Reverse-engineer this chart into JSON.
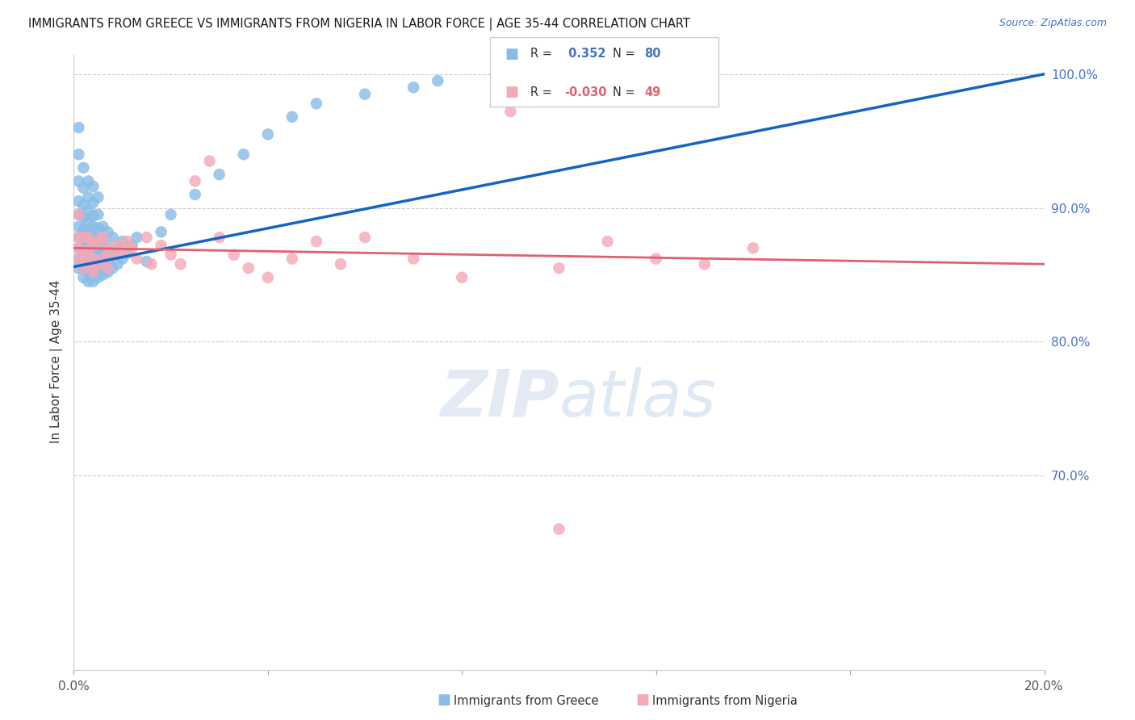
{
  "title": "IMMIGRANTS FROM GREECE VS IMMIGRANTS FROM NIGERIA IN LABOR FORCE | AGE 35-44 CORRELATION CHART",
  "source": "Source: ZipAtlas.com",
  "ylabel": "In Labor Force | Age 35-44",
  "x_min": 0.0,
  "x_max": 0.2,
  "y_min": 0.555,
  "y_max": 1.015,
  "y_ticks_right": [
    0.7,
    0.8,
    0.9,
    1.0
  ],
  "y_tick_labels_right": [
    "70.0%",
    "80.0%",
    "90.0%",
    "100.0%"
  ],
  "greece_R": 0.352,
  "greece_N": 80,
  "nigeria_R": -0.03,
  "nigeria_N": 49,
  "greece_color": "#87bce8",
  "nigeria_color": "#f5a8b5",
  "greece_line_color": "#1565c0",
  "nigeria_line_color": "#e06070",
  "watermark_color": "#ccdaea",
  "greece_x": [
    0.001,
    0.001,
    0.001,
    0.001,
    0.001,
    0.001,
    0.001,
    0.001,
    0.001,
    0.001,
    0.002,
    0.002,
    0.002,
    0.002,
    0.002,
    0.002,
    0.002,
    0.002,
    0.002,
    0.002,
    0.003,
    0.003,
    0.003,
    0.003,
    0.003,
    0.003,
    0.003,
    0.003,
    0.003,
    0.003,
    0.004,
    0.004,
    0.004,
    0.004,
    0.004,
    0.004,
    0.004,
    0.004,
    0.004,
    0.004,
    0.005,
    0.005,
    0.005,
    0.005,
    0.005,
    0.005,
    0.005,
    0.005,
    0.006,
    0.006,
    0.006,
    0.006,
    0.006,
    0.007,
    0.007,
    0.007,
    0.007,
    0.008,
    0.008,
    0.008,
    0.009,
    0.009,
    0.01,
    0.01,
    0.011,
    0.012,
    0.013,
    0.015,
    0.018,
    0.02,
    0.025,
    0.03,
    0.035,
    0.04,
    0.045,
    0.05,
    0.06,
    0.07,
    0.075,
    0.09
  ],
  "greece_y": [
    0.855,
    0.862,
    0.87,
    0.878,
    0.886,
    0.895,
    0.905,
    0.92,
    0.94,
    0.96,
    0.848,
    0.855,
    0.862,
    0.87,
    0.877,
    0.884,
    0.893,
    0.902,
    0.915,
    0.93,
    0.845,
    0.852,
    0.86,
    0.868,
    0.875,
    0.882,
    0.89,
    0.898,
    0.908,
    0.92,
    0.845,
    0.852,
    0.858,
    0.865,
    0.872,
    0.878,
    0.886,
    0.894,
    0.904,
    0.916,
    0.848,
    0.855,
    0.862,
    0.87,
    0.878,
    0.885,
    0.895,
    0.908,
    0.85,
    0.858,
    0.866,
    0.875,
    0.886,
    0.852,
    0.86,
    0.87,
    0.882,
    0.855,
    0.865,
    0.878,
    0.858,
    0.87,
    0.862,
    0.875,
    0.866,
    0.872,
    0.878,
    0.86,
    0.882,
    0.895,
    0.91,
    0.925,
    0.94,
    0.955,
    0.968,
    0.978,
    0.985,
    0.99,
    0.995,
    1.0
  ],
  "nigeria_x": [
    0.001,
    0.001,
    0.001,
    0.001,
    0.002,
    0.002,
    0.002,
    0.003,
    0.003,
    0.003,
    0.004,
    0.004,
    0.004,
    0.005,
    0.005,
    0.006,
    0.006,
    0.007,
    0.007,
    0.008,
    0.009,
    0.01,
    0.011,
    0.012,
    0.013,
    0.015,
    0.016,
    0.018,
    0.02,
    0.022,
    0.025,
    0.028,
    0.03,
    0.033,
    0.036,
    0.04,
    0.045,
    0.05,
    0.055,
    0.06,
    0.07,
    0.08,
    0.09,
    0.1,
    0.11,
    0.12,
    0.13,
    0.14,
    0.1
  ],
  "nigeria_y": [
    0.862,
    0.87,
    0.878,
    0.895,
    0.855,
    0.865,
    0.878,
    0.858,
    0.868,
    0.878,
    0.852,
    0.862,
    0.873,
    0.858,
    0.875,
    0.862,
    0.878,
    0.855,
    0.87,
    0.865,
    0.872,
    0.868,
    0.875,
    0.87,
    0.862,
    0.878,
    0.858,
    0.872,
    0.865,
    0.858,
    0.92,
    0.935,
    0.878,
    0.865,
    0.855,
    0.848,
    0.862,
    0.875,
    0.858,
    0.878,
    0.862,
    0.848,
    0.972,
    0.855,
    0.875,
    0.862,
    0.858,
    0.87,
    0.66
  ]
}
